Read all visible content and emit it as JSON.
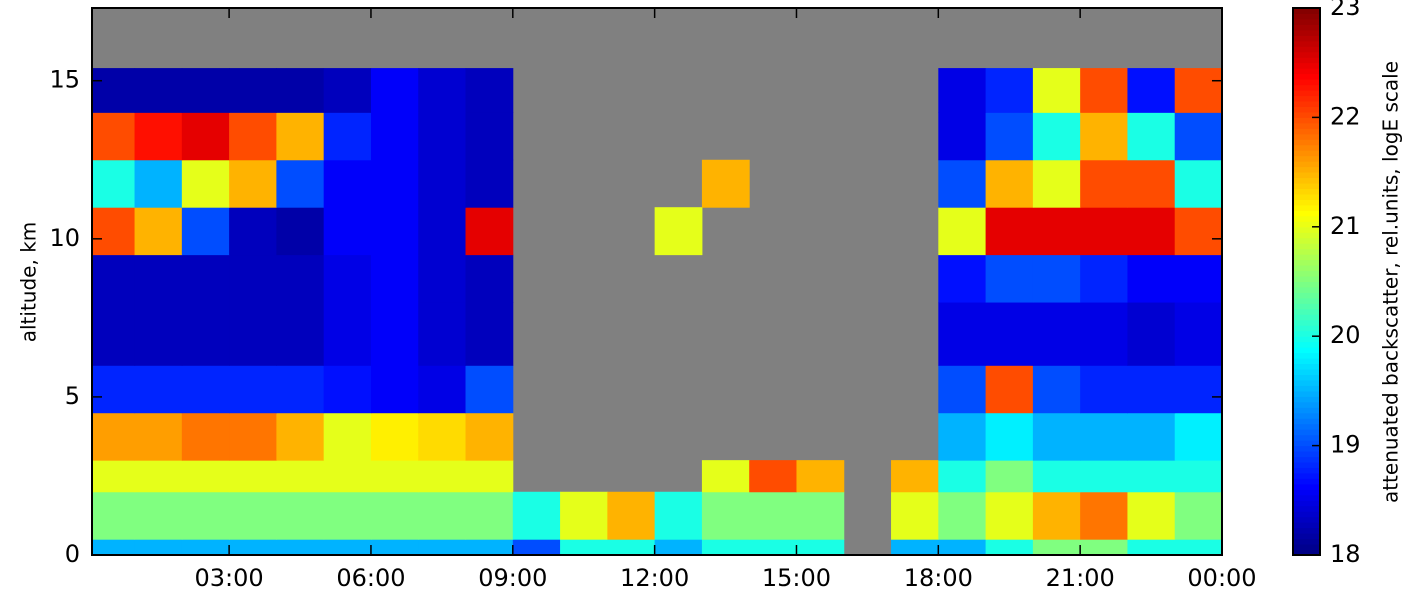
{
  "chart_data": {
    "type": "heatmap",
    "ylabel": "altitude, km",
    "colorbar_label": "attenuated backscatter, rel.units, logE scale",
    "colormap": "jet",
    "missing_color": "#808080",
    "x_edges": [
      0.1,
      1,
      2,
      3,
      4,
      5,
      6,
      7,
      8,
      9,
      10,
      11,
      12,
      13,
      14,
      15,
      16,
      17,
      18,
      19,
      20,
      21,
      22,
      23,
      24
    ],
    "y_edges": [
      0,
      0.5,
      2,
      3,
      4.5,
      6,
      8,
      9.5,
      11,
      12.5,
      14,
      15.4
    ],
    "z": [
      [
        19.5,
        19.5,
        19.5,
        19.5,
        19.5,
        19.5,
        19.5,
        19.5,
        19.5,
        19,
        20,
        20,
        19.5,
        20,
        20,
        20,
        null,
        19.5,
        19.5,
        20,
        20.5,
        20.5,
        20,
        20
      ],
      [
        20.5,
        20.5,
        20.5,
        20.5,
        20.5,
        20.5,
        20.5,
        20.5,
        20.5,
        20,
        21,
        21.5,
        20,
        20.5,
        20.5,
        20.5,
        null,
        21,
        20.5,
        21,
        21.5,
        21.8,
        21,
        20.5
      ],
      [
        21,
        21,
        21,
        21,
        21,
        21,
        21,
        21,
        21,
        null,
        null,
        null,
        null,
        21,
        22,
        21.5,
        null,
        21.5,
        20,
        20.5,
        20,
        20,
        20,
        20
      ],
      [
        21.6,
        21.6,
        21.8,
        21.8,
        21.5,
        21,
        21.2,
        21.3,
        21.5,
        null,
        null,
        null,
        null,
        null,
        null,
        null,
        null,
        null,
        19.5,
        19.8,
        19.5,
        19.5,
        19.5,
        19.8
      ],
      [
        18.8,
        18.8,
        18.8,
        18.8,
        18.8,
        18.7,
        18.6,
        18.5,
        19,
        null,
        null,
        null,
        null,
        null,
        null,
        null,
        null,
        null,
        19,
        22,
        19,
        18.8,
        18.8,
        18.8
      ],
      [
        18.3,
        18.3,
        18.3,
        18.3,
        18.3,
        18.5,
        18.6,
        18.4,
        18.3,
        null,
        null,
        null,
        null,
        null,
        null,
        null,
        null,
        null,
        18.5,
        18.5,
        18.5,
        18.5,
        18.4,
        18.5
      ],
      [
        18.3,
        18.3,
        18.3,
        18.3,
        18.3,
        18.5,
        18.6,
        18.4,
        18.3,
        null,
        null,
        null,
        null,
        null,
        null,
        null,
        null,
        null,
        18.7,
        19,
        19,
        18.8,
        18.6,
        18.6
      ],
      [
        22,
        21.5,
        19,
        18.3,
        18.2,
        18.6,
        18.6,
        18.4,
        22.5,
        null,
        null,
        null,
        21,
        null,
        null,
        null,
        null,
        null,
        21,
        22.5,
        22.5,
        22.5,
        22.5,
        22
      ],
      [
        20,
        19.5,
        21,
        21.5,
        19,
        18.6,
        18.6,
        18.4,
        18.3,
        null,
        null,
        null,
        null,
        21.5,
        null,
        null,
        null,
        null,
        19,
        21.5,
        21,
        22,
        22,
        20
      ],
      [
        22,
        22.3,
        22.5,
        22,
        21.5,
        18.8,
        18.6,
        18.4,
        18.3,
        null,
        null,
        null,
        null,
        null,
        null,
        null,
        null,
        null,
        18.5,
        19,
        20,
        21.5,
        20,
        19
      ],
      [
        18.2,
        18.2,
        18.2,
        18.2,
        18.2,
        18.3,
        18.6,
        18.4,
        18.3,
        null,
        null,
        null,
        null,
        null,
        null,
        null,
        null,
        null,
        18.5,
        18.8,
        21,
        22,
        18.7,
        22
      ]
    ],
    "xlim": [
      0.1,
      24
    ],
    "xticks": [
      {
        "value": 3,
        "label": "03:00"
      },
      {
        "value": 6,
        "label": "06:00"
      },
      {
        "value": 9,
        "label": "09:00"
      },
      {
        "value": 12,
        "label": "12:00"
      },
      {
        "value": 15,
        "label": "15:00"
      },
      {
        "value": 18,
        "label": "18:00"
      },
      {
        "value": 21,
        "label": "21:00"
      },
      {
        "value": 24,
        "label": "00:00"
      }
    ],
    "ylim": [
      0,
      17.3
    ],
    "yticks": [
      0,
      5,
      10,
      15
    ],
    "clim": [
      18,
      23
    ],
    "cticks": [
      18,
      19,
      20,
      21,
      22,
      23
    ]
  }
}
